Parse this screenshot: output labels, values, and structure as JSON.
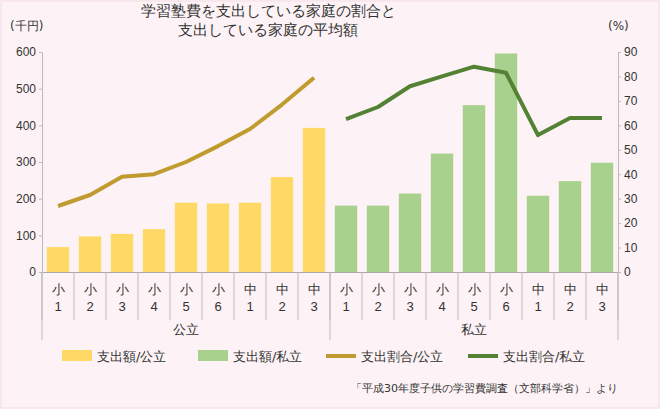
{
  "chart_data": {
    "type": "bar",
    "title": "学習塾費を支出している家庭の割合と\n支出している家庭の平均額",
    "y_label": "(千円)",
    "y2_label": "(%)",
    "source": "「平成30年度子供の学習費調査（文部科学省）」より",
    "categories": [
      "小1",
      "小2",
      "小3",
      "小4",
      "小5",
      "小6",
      "中1",
      "中2",
      "中3",
      "小1",
      "小2",
      "小3",
      "小4",
      "小5",
      "小6",
      "中1",
      "中2",
      "中3"
    ],
    "groups": [
      {
        "label": "公立",
        "count": 9
      },
      {
        "label": "私立",
        "count": 9
      }
    ],
    "series": [
      {
        "name": "支出額/公立",
        "type": "bar",
        "color": "#ffd966",
        "values": [
          68,
          97,
          104,
          117,
          189,
          187,
          189,
          259,
          393,
          null,
          null,
          null,
          null,
          null,
          null,
          null,
          null,
          null
        ]
      },
      {
        "name": "支出額/私立",
        "type": "bar",
        "color": "#a9d18e",
        "values": [
          null,
          null,
          null,
          null,
          null,
          null,
          null,
          null,
          null,
          181,
          181,
          214,
          323,
          455,
          596,
          208,
          248,
          298
        ]
      },
      {
        "name": "支出割合/公立",
        "type": "line",
        "axis": "y2",
        "color": "#bf9b30",
        "values": [
          27,
          31.5,
          39,
          40,
          45,
          51.5,
          58.5,
          68.5,
          79.5,
          null,
          null,
          null,
          null,
          null,
          null,
          null,
          null,
          null
        ]
      },
      {
        "name": "支出割合/私立",
        "type": "line",
        "axis": "y2",
        "color": "#548235",
        "values": [
          null,
          null,
          null,
          null,
          null,
          null,
          null,
          null,
          null,
          62.5,
          67.5,
          76,
          80,
          84,
          81.5,
          56,
          63,
          63
        ]
      }
    ],
    "ylim": [
      0,
      600
    ],
    "yticks": [
      0,
      100,
      200,
      300,
      400,
      500,
      600
    ],
    "y2lim": [
      0,
      90
    ],
    "y2ticks": [
      0,
      10,
      20,
      30,
      40,
      50,
      60,
      70,
      80,
      90
    ],
    "grid": false,
    "legend": "bottom"
  }
}
